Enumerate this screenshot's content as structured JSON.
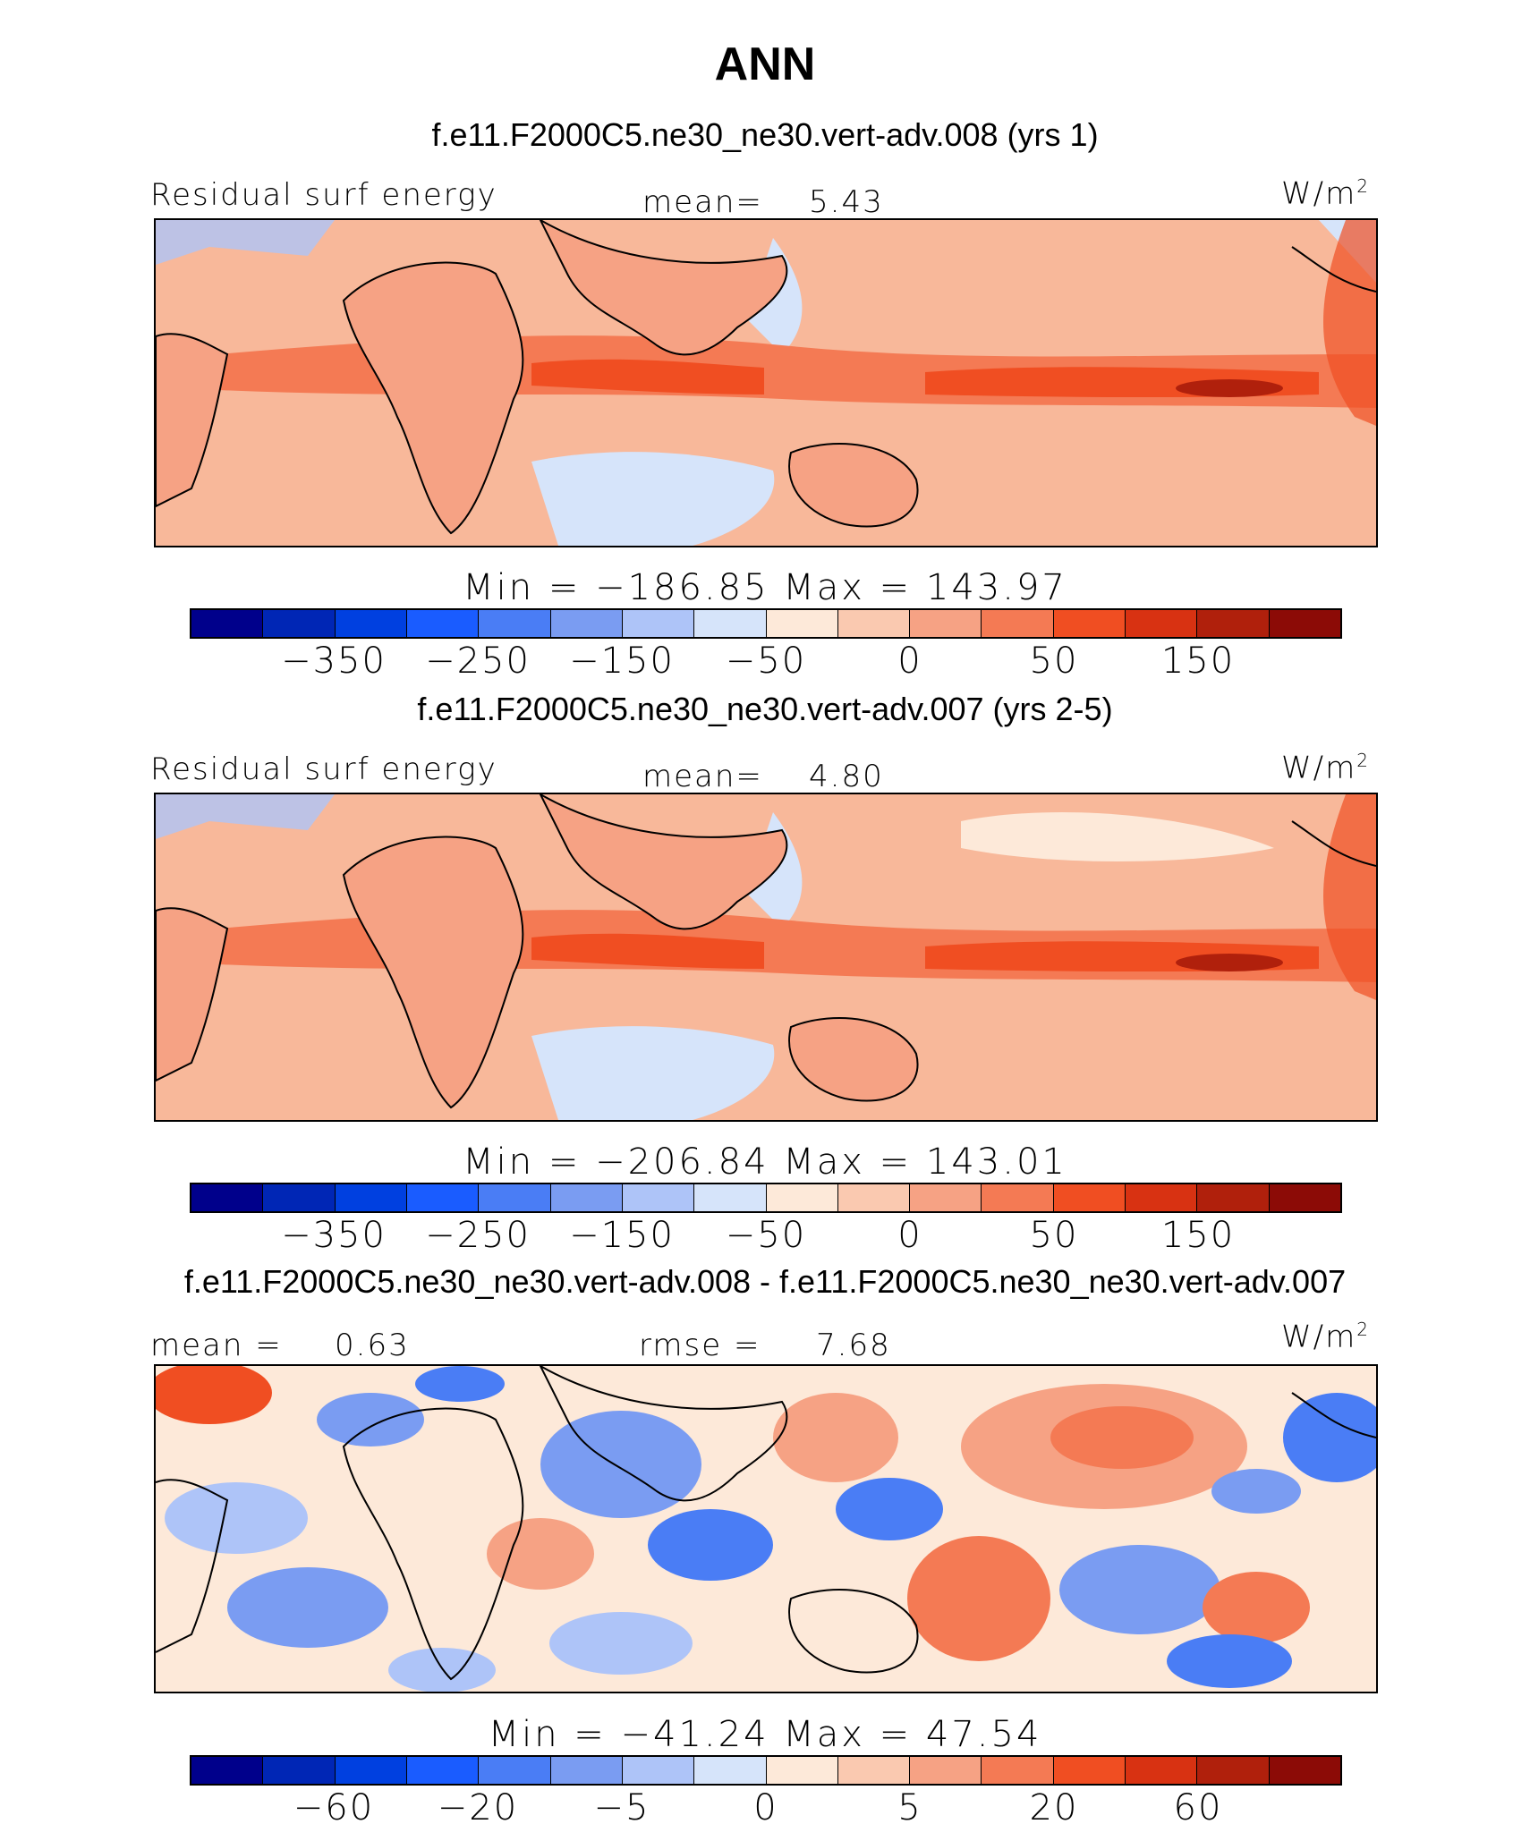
{
  "title": "ANN",
  "colors": {
    "bar_a": [
      "#00008b",
      "#0026b5",
      "#0040e0",
      "#1a5cff",
      "#4a7df5",
      "#7a9cf2",
      "#aec4f8",
      "#d6e4fa",
      "#fde9d9",
      "#fac9b0",
      "#f6a284",
      "#f47a54",
      "#f04e22",
      "#d83212",
      "#b0200c",
      "#8c0b06"
    ],
    "bar_c": [
      "#00008b",
      "#0026b5",
      "#0040e0",
      "#1a5cff",
      "#4a7df5",
      "#7a9cf2",
      "#aec4f8",
      "#d6e4fa",
      "#fde9d9",
      "#fac9b0",
      "#f6a284",
      "#f47a54",
      "#f04e22",
      "#d83212",
      "#b0200c",
      "#8c0b06"
    ]
  },
  "chart_data": [
    {
      "type": "heatmap",
      "title": "f.e11.F2000C5.ne30_ne30.vert-adv.008 (yrs 1)",
      "field_label": "Residual surf energy",
      "stat_label": "mean=",
      "stat_value": "5.43",
      "units": "W/m",
      "units_sup": "2",
      "minmax": "Min = −186.85 Max = 143.97",
      "colorbar_ticks": [
        "−350",
        "−250",
        "−150",
        "−50",
        "0",
        "50",
        "150"
      ],
      "min": -186.85,
      "max": 143.97,
      "mean": 5.43
    },
    {
      "type": "heatmap",
      "title": "f.e11.F2000C5.ne30_ne30.vert-adv.007 (yrs 2-5)",
      "field_label": "Residual surf energy",
      "stat_label": "mean=",
      "stat_value": "4.80",
      "units": "W/m",
      "units_sup": "2",
      "minmax": "Min = −206.84 Max = 143.01",
      "colorbar_ticks": [
        "−350",
        "−250",
        "−150",
        "−50",
        "0",
        "50",
        "150"
      ],
      "min": -206.84,
      "max": 143.01,
      "mean": 4.8
    },
    {
      "type": "heatmap",
      "title": "f.e11.F2000C5.ne30_ne30.vert-adv.008 - f.e11.F2000C5.ne30_ne30.vert-adv.007",
      "field_label": "mean =",
      "field_value": "0.63",
      "stat_label": "rmse =",
      "stat_value": "7.68",
      "units": "W/m",
      "units_sup": "2",
      "minmax": "Min = −41.24 Max = 47.54",
      "colorbar_ticks": [
        "−60",
        "−20",
        "−5",
        "0",
        "5",
        "20",
        "60"
      ],
      "min": -41.24,
      "max": 47.54,
      "mean": 0.63,
      "rmse": 7.68
    }
  ]
}
